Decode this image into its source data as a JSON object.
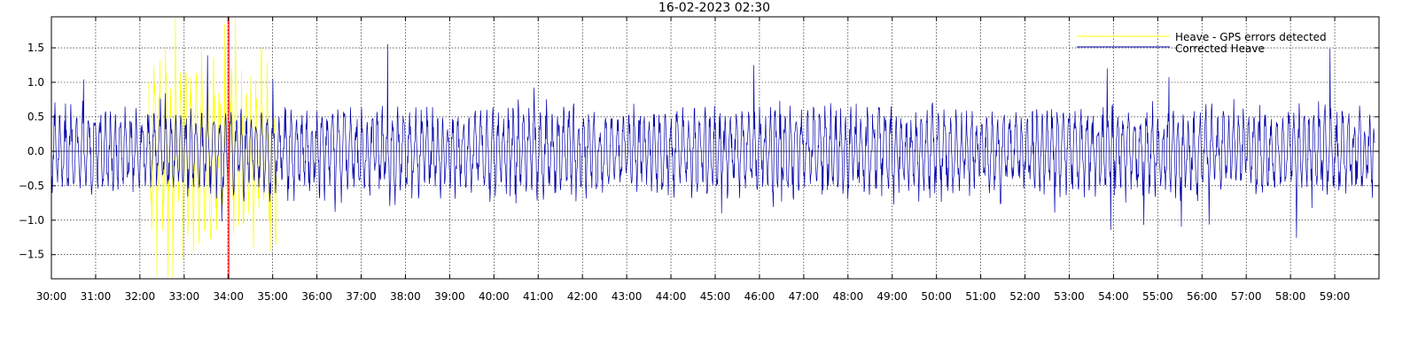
{
  "chart_data": {
    "type": "line",
    "title": "16-02-2023 02:30",
    "xlabel": "",
    "ylabel": "",
    "x_unit": "minutes",
    "xlim": [
      30,
      60
    ],
    "ylim": [
      -1.85,
      1.95
    ],
    "x_ticks": [
      30,
      31,
      32,
      33,
      34,
      35,
      36,
      37,
      38,
      39,
      40,
      41,
      42,
      43,
      44,
      45,
      46,
      47,
      48,
      49,
      50,
      51,
      52,
      53,
      54,
      55,
      56,
      57,
      58,
      59
    ],
    "x_tick_labels": [
      "30:00",
      "31:00",
      "32:00",
      "33:00",
      "34:00",
      "35:00",
      "36:00",
      "37:00",
      "38:00",
      "39:00",
      "40:00",
      "41:00",
      "42:00",
      "43:00",
      "44:00",
      "45:00",
      "46:00",
      "47:00",
      "48:00",
      "49:00",
      "50:00",
      "51:00",
      "52:00",
      "53:00",
      "54:00",
      "55:00",
      "56:00",
      "57:00",
      "58:00",
      "59:00"
    ],
    "y_ticks": [
      -1.5,
      -1.0,
      -0.5,
      0.0,
      0.5,
      1.0,
      1.5
    ],
    "y_tick_labels": [
      "−1.5",
      "−1.0",
      "−0.5",
      "0.0",
      "0.5",
      "1.0",
      "1.5"
    ],
    "grid": true,
    "zero_line": true,
    "legend_position": "top-right",
    "marker": {
      "x": 34.0,
      "color": "#ff0000"
    },
    "series": [
      {
        "name": "Heave - GPS errors detected",
        "color": "#ffff00",
        "x_range": [
          32.2,
          35.1
        ],
        "points": 300,
        "amplitude": 0.95,
        "seed": 7
      },
      {
        "name": "Corrected Heave",
        "color": "#0000aa",
        "x_range": [
          30,
          59.9
        ],
        "points": 3000,
        "amplitude": 0.48,
        "seed": 42
      }
    ]
  }
}
